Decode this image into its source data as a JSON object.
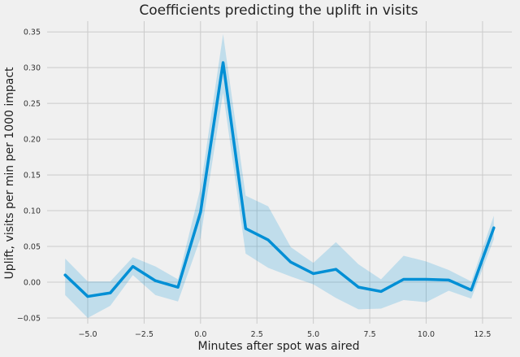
{
  "chart_data": {
    "type": "line",
    "title": "Coefficients predicting the uplift in visits",
    "xlabel": "Minutes after spot was aired",
    "ylabel": "Uplift, visits per min per 1000 impact",
    "xlim": [
      -6.8,
      13.8
    ],
    "ylim": [
      -0.058,
      0.365
    ],
    "xticks": [
      -5.0,
      -2.5,
      0.0,
      2.5,
      5.0,
      7.5,
      10.0,
      12.5
    ],
    "xtick_labels": [
      "−5.0",
      "−2.5",
      "0.0",
      "2.5",
      "5.0",
      "7.5",
      "10.0",
      "12.5"
    ],
    "yticks": [
      -0.05,
      0.0,
      0.05,
      0.1,
      0.15,
      0.2,
      0.25,
      0.3,
      0.35
    ],
    "ytick_labels": [
      "−0.05",
      "0.00",
      "0.05",
      "0.10",
      "0.15",
      "0.20",
      "0.25",
      "0.30",
      "0.35"
    ],
    "grid": true,
    "colors": {
      "line": "#008fd5",
      "band": "#008fd5",
      "grid": "#cbcbcb",
      "background": "#f0f0f0"
    },
    "x": [
      -6,
      -5,
      -4,
      -3,
      -2,
      -1,
      0,
      1,
      2,
      3,
      4,
      5,
      6,
      7,
      8,
      9,
      10,
      11,
      12,
      13
    ],
    "series": [
      {
        "values": [
          0.01,
          -0.02,
          -0.015,
          0.022,
          0.002,
          -0.007,
          0.098,
          0.307,
          0.075,
          0.059,
          0.028,
          0.012,
          0.018,
          -0.007,
          -0.013,
          0.004,
          0.004,
          0.003,
          -0.011,
          0.076
        ],
        "lower": [
          -0.018,
          -0.05,
          -0.033,
          0.01,
          -0.018,
          -0.027,
          0.062,
          0.265,
          0.04,
          0.02,
          0.008,
          -0.003,
          -0.022,
          -0.038,
          -0.037,
          -0.025,
          -0.028,
          -0.012,
          -0.023,
          0.06
        ],
        "upper": [
          0.033,
          0.001,
          0.001,
          0.035,
          0.022,
          0.004,
          0.132,
          0.347,
          0.121,
          0.106,
          0.049,
          0.027,
          0.056,
          0.025,
          0.004,
          0.037,
          0.029,
          0.017,
          0.001,
          0.093
        ]
      }
    ]
  }
}
